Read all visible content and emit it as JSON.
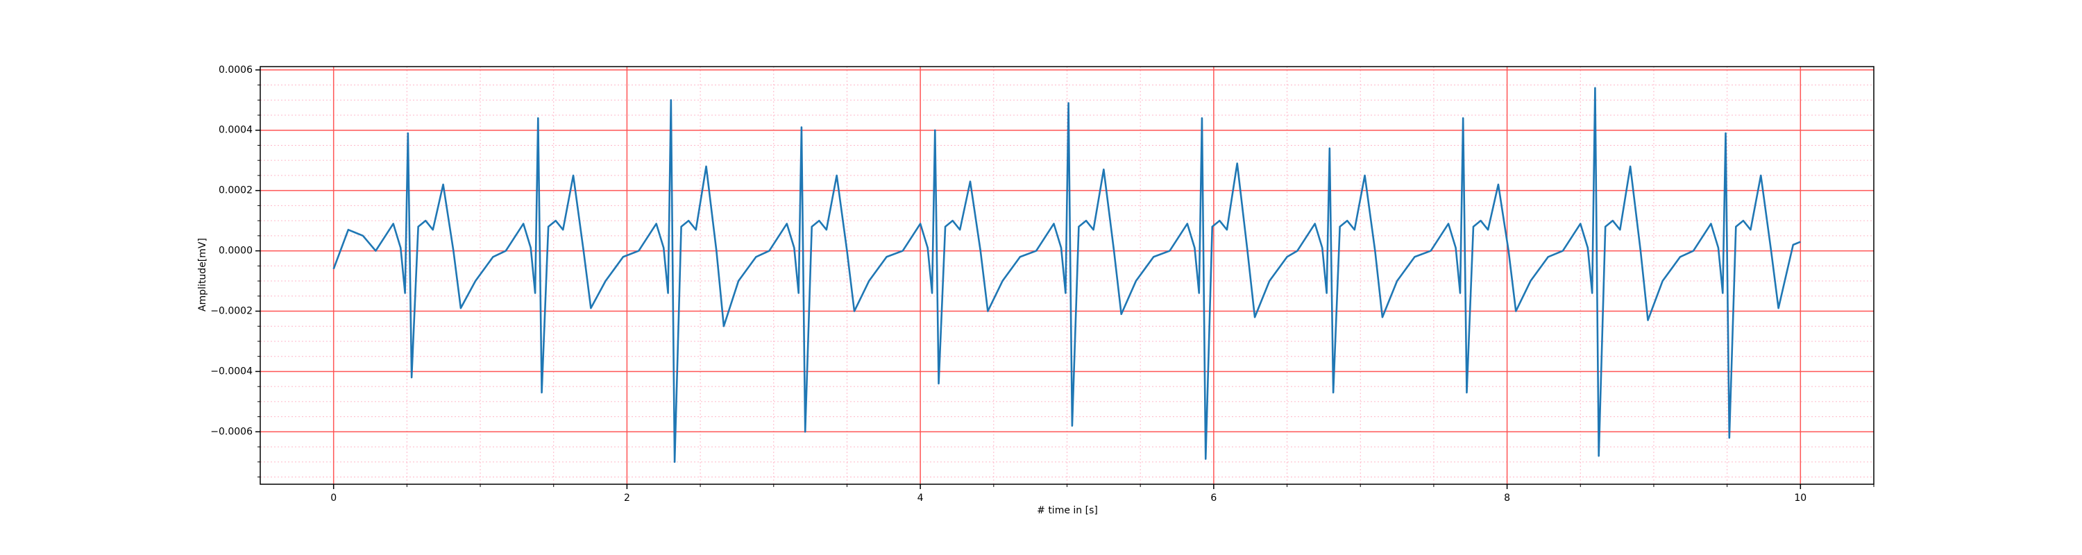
{
  "chart_data": {
    "type": "line",
    "x_label": "# time in [s]",
    "y_label": "Amplitude[mV]",
    "xlim": [
      -0.5,
      10.5
    ],
    "ylim": [
      -0.000774,
      0.000611
    ],
    "xticks": [
      0,
      2,
      4,
      6,
      8,
      10
    ],
    "yticks": [
      {
        "value": -0.0006,
        "label": "−0.0006"
      },
      {
        "value": -0.0004,
        "label": "−0.0004"
      },
      {
        "value": -0.0002,
        "label": "−0.0002"
      },
      {
        "value": 0,
        "label": "0.0000"
      },
      0.0002,
      0.0004,
      0.0006
    ],
    "xminorticks": [
      0.5,
      1,
      1.5,
      2.5,
      3,
      3.5,
      4.5,
      5,
      5.5,
      6.5,
      7,
      7.5,
      8.5,
      9,
      9.5,
      10.5
    ],
    "yminorticks": [
      -0.00075,
      -0.0007,
      -0.00065,
      -0.00055,
      -0.0005,
      -0.00045,
      -0.00035,
      -0.0003,
      -0.00025,
      -0.00015,
      -0.0001,
      -5e-05,
      5e-05,
      0.0001,
      0.00015,
      0.00025,
      0.0003,
      0.00035,
      0.00045,
      0.0005,
      0.00055
    ],
    "grid": true,
    "major_grid_color": "#ff5555",
    "minor_grid_color": "#ffb6c8",
    "series": [
      {
        "color": "#1f77b4",
        "x": [
          0,
          0.1,
          0.2,
          0.287,
          0.407,
          0.457,
          0.487,
          0.507,
          0.532,
          0.577,
          0.627,
          0.677,
          0.747,
          0.817,
          0.867,
          0.967,
          1.087,
          1.174,
          1.294,
          1.344,
          1.374,
          1.394,
          1.419,
          1.464,
          1.514,
          1.564,
          1.634,
          1.704,
          1.754,
          1.854,
          1.974,
          2.08,
          2.2,
          2.25,
          2.28,
          2.3,
          2.325,
          2.37,
          2.42,
          2.47,
          2.54,
          2.61,
          2.66,
          2.76,
          2.88,
          2.97,
          3.09,
          3.14,
          3.17,
          3.19,
          3.215,
          3.26,
          3.31,
          3.36,
          3.43,
          3.5,
          3.55,
          3.65,
          3.77,
          3.88,
          4.0,
          4.05,
          4.08,
          4.1,
          4.125,
          4.17,
          4.22,
          4.27,
          4.34,
          4.41,
          4.46,
          4.56,
          4.68,
          4.79,
          4.91,
          4.96,
          4.99,
          5.01,
          5.035,
          5.08,
          5.13,
          5.18,
          5.25,
          5.32,
          5.37,
          5.47,
          5.59,
          5.7,
          5.82,
          5.87,
          5.9,
          5.92,
          5.945,
          5.99,
          6.04,
          6.09,
          6.16,
          6.23,
          6.28,
          6.38,
          6.5,
          6.57,
          6.69,
          6.74,
          6.77,
          6.79,
          6.815,
          6.86,
          6.91,
          6.96,
          7.03,
          7.1,
          7.15,
          7.25,
          7.37,
          7.48,
          7.6,
          7.65,
          7.68,
          7.7,
          7.725,
          7.77,
          7.82,
          7.87,
          7.94,
          8.01,
          8.06,
          8.16,
          8.28,
          8.38,
          8.5,
          8.55,
          8.58,
          8.6,
          8.625,
          8.67,
          8.72,
          8.77,
          8.84,
          8.91,
          8.96,
          9.06,
          9.18,
          9.27,
          9.39,
          9.44,
          9.47,
          9.49,
          9.515,
          9.56,
          9.61,
          9.66,
          9.73,
          9.8,
          9.85,
          9.95,
          10.0
        ],
        "values": [
          -6e-05,
          7e-05,
          5e-05,
          0.0,
          9e-05,
          1e-05,
          -0.00014,
          0.00039,
          -0.00042,
          8e-05,
          0.0001,
          7e-05,
          0.00022,
          0.0,
          -0.00019,
          -0.0001,
          -2e-05,
          0.0,
          9e-05,
          1e-05,
          -0.00014,
          0.00044,
          -0.00047,
          8e-05,
          0.0001,
          7e-05,
          0.00025,
          0.0,
          -0.00019,
          -0.0001,
          -2e-05,
          0.0,
          9e-05,
          1e-05,
          -0.00014,
          0.0005,
          -0.0007,
          8e-05,
          0.0001,
          7e-05,
          0.00028,
          0.0,
          -0.00025,
          -0.0001,
          -2e-05,
          0.0,
          9e-05,
          1e-05,
          -0.00014,
          0.00041,
          -0.0006,
          8e-05,
          0.0001,
          7e-05,
          0.00025,
          0.0,
          -0.0002,
          -0.0001,
          -2e-05,
          0.0,
          9e-05,
          1e-05,
          -0.00014,
          0.0004,
          -0.00044,
          8e-05,
          0.0001,
          7e-05,
          0.00023,
          0.0,
          -0.0002,
          -0.0001,
          -2e-05,
          0.0,
          9e-05,
          1e-05,
          -0.00014,
          0.00049,
          -0.00058,
          8e-05,
          0.0001,
          7e-05,
          0.00027,
          0.0,
          -0.00021,
          -0.0001,
          -2e-05,
          0.0,
          9e-05,
          1e-05,
          -0.00014,
          0.00044,
          -0.00069,
          8e-05,
          0.0001,
          7e-05,
          0.00029,
          0.0,
          -0.00022,
          -0.0001,
          -2e-05,
          0.0,
          9e-05,
          1e-05,
          -0.00014,
          0.00034,
          -0.00047,
          8e-05,
          0.0001,
          7e-05,
          0.00025,
          0.0,
          -0.00022,
          -0.0001,
          -2e-05,
          0.0,
          9e-05,
          1e-05,
          -0.00014,
          0.00044,
          -0.00047,
          8e-05,
          0.0001,
          7e-05,
          0.00022,
          0.0,
          -0.0002,
          -0.0001,
          -2e-05,
          0.0,
          9e-05,
          1e-05,
          -0.00014,
          0.00054,
          -0.00068,
          8e-05,
          0.0001,
          7e-05,
          0.00028,
          0.0,
          -0.00023,
          -0.0001,
          -2e-05,
          0.0,
          9e-05,
          1e-05,
          -0.00014,
          0.00039,
          -0.00062,
          8e-05,
          0.0001,
          7e-05,
          0.00025,
          0.0,
          -0.00019,
          2e-05,
          3e-05
        ]
      }
    ]
  }
}
